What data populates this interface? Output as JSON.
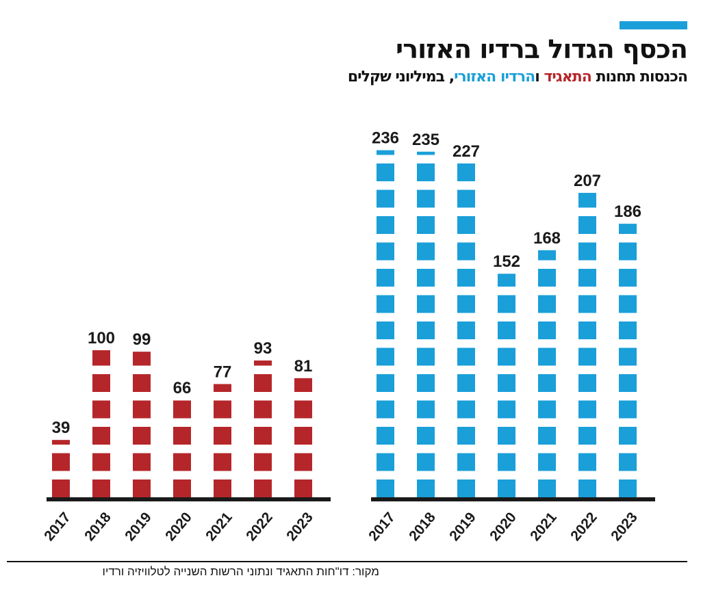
{
  "title": "הכסף הגדול ברדיו האזורי",
  "subtitle": {
    "part1": "הכנסות תחנות ",
    "part2": "התאגיד",
    "part3": " ו",
    "part4": "הרדיו האזורי",
    "part5": ", במיליוני שקלים"
  },
  "source": "מקור: דו\"חות התאגיד ונתוני הרשות השנייה לטלוויזיה ורדיו",
  "colors": {
    "public": "#b5262a",
    "regional": "#1a9fd9",
    "accent": "#1a9fd9"
  },
  "chart_data": [
    {
      "type": "bar",
      "categories": [
        "2017",
        "2018",
        "2019",
        "2020",
        "2021",
        "2022",
        "2023"
      ],
      "values": [
        39,
        100,
        99,
        66,
        77,
        93,
        81
      ],
      "color": "#b5262a",
      "ylim": [
        0,
        240
      ]
    },
    {
      "type": "bar",
      "categories": [
        "2017",
        "2018",
        "2019",
        "2020",
        "2021",
        "2022",
        "2023"
      ],
      "values": [
        236,
        235,
        227,
        152,
        168,
        207,
        186
      ],
      "color": "#1a9fd9",
      "ylim": [
        0,
        240
      ]
    }
  ]
}
